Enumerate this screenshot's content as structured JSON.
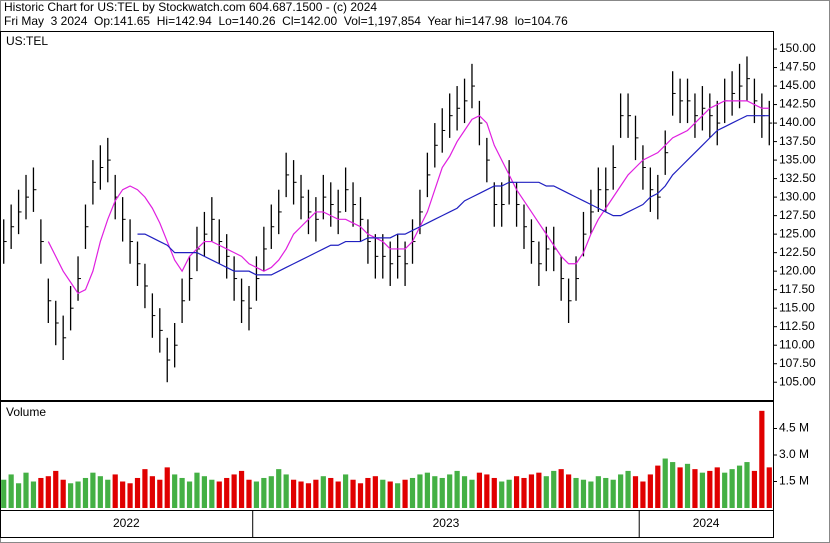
{
  "header": {
    "line1": "Historic Chart for US:TEL by Stockwatch.com 604.687.1500 - (c) 2024",
    "line2": "Fri May  3 2024  Op:141.65  Hi=142.94  Lo=140.26  Cl=142.00  Vol=1,197,854  Year hi=147.98  lo=104.76"
  },
  "chart_data": [
    {
      "type": "ohlc",
      "title": "US:TEL",
      "bar_color": "#000000",
      "high": [
        127,
        129,
        131,
        133,
        134,
        127,
        119,
        116,
        114,
        118,
        122,
        129,
        135,
        137,
        138,
        133,
        130,
        127,
        124,
        121,
        117,
        115,
        111,
        113,
        119,
        122,
        126,
        128,
        130,
        127,
        125,
        122,
        119,
        118,
        122,
        126,
        129,
        131,
        136,
        135,
        133,
        131,
        130,
        133,
        132,
        131,
        134,
        132,
        130,
        127,
        125,
        125,
        124,
        125,
        124,
        127,
        131,
        136,
        140,
        142,
        144,
        145,
        146,
        148,
        143,
        138,
        132,
        132,
        135,
        132,
        129,
        127,
        124,
        126,
        126,
        122,
        119,
        122,
        128,
        131,
        134,
        134,
        137,
        144,
        144,
        141,
        137,
        134,
        133,
        139,
        147,
        146,
        146,
        144,
        145,
        144,
        143,
        146,
        147,
        148,
        149,
        146,
        144,
        143
      ],
      "low": [
        121,
        123,
        125,
        127,
        128,
        121,
        113,
        110,
        108,
        112,
        116,
        123,
        129,
        131,
        132,
        127,
        124,
        121,
        118,
        115,
        111,
        109,
        105,
        107,
        113,
        116,
        120,
        122,
        124,
        121,
        119,
        116,
        113,
        112,
        116,
        120,
        123,
        125,
        130,
        129,
        127,
        125,
        124,
        127,
        126,
        125,
        128,
        126,
        124,
        121,
        119,
        119,
        118,
        119,
        118,
        121,
        125,
        130,
        134,
        136,
        138,
        139,
        140,
        142,
        137,
        132,
        126,
        126,
        129,
        126,
        123,
        121,
        118,
        120,
        120,
        116,
        113,
        116,
        122,
        125,
        128,
        128,
        131,
        138,
        138,
        135,
        131,
        128,
        127,
        133,
        141,
        140,
        140,
        138,
        139,
        138,
        137,
        140,
        141,
        142,
        143,
        140,
        138,
        137
      ],
      "close": [
        124,
        126,
        128,
        130,
        131,
        124,
        116,
        113,
        111,
        115,
        119,
        126,
        132,
        134,
        135,
        130,
        127,
        124,
        121,
        118,
        114,
        112,
        108,
        110,
        116,
        119,
        123,
        125,
        127,
        124,
        122,
        119,
        116,
        115,
        119,
        123,
        126,
        128,
        133,
        132,
        130,
        128,
        127,
        130,
        129,
        128,
        131,
        129,
        127,
        124,
        122,
        122,
        121,
        122,
        121,
        124,
        128,
        133,
        137,
        139,
        141,
        142,
        143,
        145,
        140,
        135,
        129,
        129,
        132,
        129,
        126,
        124,
        121,
        123,
        123,
        119,
        116,
        119,
        125,
        128,
        131,
        131,
        134,
        141,
        141,
        138,
        134,
        131,
        130,
        136,
        144,
        143,
        143,
        141,
        142,
        141,
        140,
        143,
        144,
        145,
        146,
        143,
        141,
        140
      ],
      "series": [
        {
          "color": "#e020e0",
          "values": [
            null,
            null,
            null,
            null,
            null,
            null,
            124,
            122,
            120,
            118.5,
            117,
            117.5,
            120,
            124,
            127,
            129.5,
            131,
            131.5,
            131,
            130,
            128.5,
            126.5,
            124,
            121.5,
            120,
            122,
            123,
            124,
            124,
            123.5,
            123,
            122.5,
            122,
            121,
            120.5,
            120,
            120.5,
            121.5,
            123,
            125,
            126,
            127,
            128,
            128,
            127.5,
            127,
            127,
            126.5,
            126,
            125,
            124.5,
            124,
            123,
            123,
            123,
            124,
            126,
            128,
            131,
            134,
            135.5,
            137.5,
            139,
            140.5,
            141,
            140,
            137,
            135,
            133,
            131,
            129.5,
            128,
            126.5,
            125,
            123.5,
            122,
            121,
            121,
            122.5,
            125,
            127,
            128.5,
            130,
            131.5,
            133,
            134,
            135,
            135.5,
            136,
            137,
            138,
            138.5,
            139,
            140,
            141,
            142,
            142.5,
            143,
            143,
            143,
            143,
            142.5,
            142,
            142
          ]
        },
        {
          "color": "#2020c0",
          "values": [
            null,
            null,
            null,
            null,
            null,
            null,
            null,
            null,
            null,
            null,
            null,
            null,
            null,
            null,
            null,
            null,
            null,
            null,
            125,
            125,
            124.5,
            124,
            123.5,
            122.5,
            122.5,
            122.5,
            122.5,
            122,
            121.5,
            121,
            120.5,
            120,
            120,
            120,
            119.5,
            119.5,
            119.5,
            120,
            120.5,
            121,
            121.5,
            122,
            122.5,
            123,
            123.5,
            123.5,
            124,
            124,
            124,
            124.5,
            124.5,
            124.5,
            124.5,
            125,
            125,
            125.5,
            126,
            126.5,
            127,
            127.5,
            128,
            128.5,
            129.5,
            130,
            130.5,
            131,
            131.5,
            131.5,
            132,
            132,
            132,
            132,
            132,
            131.5,
            131.5,
            131,
            130.5,
            130,
            129.5,
            129,
            128.5,
            128,
            127.5,
            127.5,
            128,
            128.5,
            129,
            130,
            130.5,
            131.5,
            133,
            134,
            135,
            136,
            137,
            138,
            139,
            139.5,
            140,
            140.5,
            141,
            141,
            141,
            141
          ]
        }
      ],
      "ylim": [
        102.6,
        152.3
      ],
      "yticks": [
        {
          "value": 150,
          "label": "150.00"
        },
        {
          "value": 147.5,
          "label": "147.50"
        },
        {
          "value": 145,
          "label": "145.00"
        },
        {
          "value": 142.5,
          "label": "142.50"
        },
        {
          "value": 140,
          "label": "140.00"
        },
        {
          "value": 137.5,
          "label": "137.50"
        },
        {
          "value": 135,
          "label": "135.00"
        },
        {
          "value": 132.5,
          "label": "132.50"
        },
        {
          "value": 130,
          "label": "130.00"
        },
        {
          "value": 127.5,
          "label": "127.50"
        },
        {
          "value": 125,
          "label": "125.00"
        },
        {
          "value": 122.5,
          "label": "122.50"
        },
        {
          "value": 120,
          "label": "120.00"
        },
        {
          "value": 117.5,
          "label": "117.50"
        },
        {
          "value": 115,
          "label": "115.00"
        },
        {
          "value": 112.5,
          "label": "112.50"
        },
        {
          "value": 110,
          "label": "110.00"
        },
        {
          "value": 107.5,
          "label": "107.50"
        },
        {
          "value": 105,
          "label": "105.00"
        }
      ],
      "xticks": [
        {
          "value": 0,
          "label": "2022"
        },
        {
          "value": 34,
          "label": "2023"
        },
        {
          "value": 86,
          "label": "2024"
        }
      ]
    },
    {
      "type": "volume",
      "title": "Volume",
      "up_color": "#44b044",
      "down_color": "#e00000",
      "values": [
        1.6,
        1.9,
        1.4,
        2.0,
        1.5,
        1.7,
        1.8,
        2.1,
        1.6,
        1.4,
        1.5,
        1.7,
        2.0,
        1.8,
        1.6,
        1.9,
        1.5,
        1.4,
        1.7,
        2.2,
        1.8,
        1.6,
        2.3,
        1.9,
        1.7,
        1.5,
        2.0,
        1.8,
        1.6,
        1.5,
        1.7,
        1.9,
        2.1,
        1.6,
        1.5,
        1.7,
        1.8,
        2.2,
        1.9,
        1.6,
        1.5,
        1.4,
        1.6,
        1.8,
        1.7,
        1.5,
        1.9,
        1.6,
        1.4,
        1.7,
        1.8,
        1.6,
        1.5,
        1.4,
        1.6,
        1.7,
        1.9,
        2.0,
        1.8,
        1.7,
        1.9,
        2.1,
        1.8,
        1.6,
        2.0,
        1.9,
        1.7,
        1.5,
        1.6,
        1.8,
        1.7,
        1.9,
        2.0,
        1.8,
        2.1,
        2.2,
        1.9,
        1.7,
        1.6,
        1.5,
        1.8,
        1.7,
        1.6,
        1.9,
        2.1,
        1.8,
        1.5,
        1.9,
        2.4,
        2.8,
        2.6,
        2.3,
        2.5,
        2.2,
        2.0,
        2.1,
        2.3,
        2.0,
        2.2,
        2.4,
        2.6,
        2.1,
        5.5,
        2.3
      ],
      "ylim": [
        0,
        6
      ],
      "yticks": [
        {
          "value": 1.5,
          "label": "1.5 M"
        },
        {
          "value": 3,
          "label": "3.0 M"
        },
        {
          "value": 4.5,
          "label": "4.5 M"
        }
      ]
    }
  ]
}
